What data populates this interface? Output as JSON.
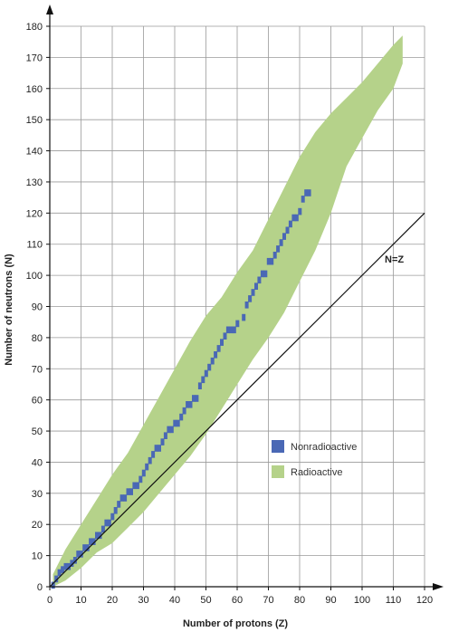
{
  "chart_data": {
    "type": "area",
    "title": "",
    "xlabel": "Number of protons (Z)",
    "ylabel": "Number of neutrons (N)",
    "xlim": [
      0,
      120
    ],
    "ylim": [
      0,
      180
    ],
    "x_ticks": [
      "0",
      "10",
      "20",
      "30",
      "40",
      "50",
      "60",
      "70",
      "80",
      "90",
      "100",
      "110",
      "120"
    ],
    "y_ticks": [
      "0",
      "10",
      "20",
      "30",
      "40",
      "50",
      "60",
      "70",
      "80",
      "90",
      "100",
      "110",
      "120",
      "130",
      "140",
      "150",
      "160",
      "170",
      "180"
    ],
    "grid": true,
    "legend_position": "center-right",
    "series": [
      {
        "name": "Radioactive",
        "color": "#b5d28a",
        "kind": "band",
        "points": [
          {
            "z": 1,
            "n_min": 0,
            "n_max": 4
          },
          {
            "z": 5,
            "n_min": 2,
            "n_max": 12
          },
          {
            "z": 10,
            "n_min": 6,
            "n_max": 20
          },
          {
            "z": 15,
            "n_min": 11,
            "n_max": 28
          },
          {
            "z": 20,
            "n_min": 14,
            "n_max": 36
          },
          {
            "z": 25,
            "n_min": 19,
            "n_max": 43
          },
          {
            "z": 30,
            "n_min": 24,
            "n_max": 52
          },
          {
            "z": 35,
            "n_min": 30,
            "n_max": 61
          },
          {
            "z": 40,
            "n_min": 36,
            "n_max": 70
          },
          {
            "z": 45,
            "n_min": 42,
            "n_max": 79
          },
          {
            "z": 50,
            "n_min": 49,
            "n_max": 87
          },
          {
            "z": 55,
            "n_min": 57,
            "n_max": 93
          },
          {
            "z": 60,
            "n_min": 65,
            "n_max": 101
          },
          {
            "z": 65,
            "n_min": 73,
            "n_max": 108
          },
          {
            "z": 70,
            "n_min": 80,
            "n_max": 118
          },
          {
            "z": 75,
            "n_min": 88,
            "n_max": 128
          },
          {
            "z": 80,
            "n_min": 98,
            "n_max": 138
          },
          {
            "z": 85,
            "n_min": 108,
            "n_max": 146
          },
          {
            "z": 90,
            "n_min": 120,
            "n_max": 152
          },
          {
            "z": 95,
            "n_min": 135,
            "n_max": 157
          },
          {
            "z": 100,
            "n_min": 144,
            "n_max": 162
          },
          {
            "z": 105,
            "n_min": 153,
            "n_max": 168
          },
          {
            "z": 110,
            "n_min": 160,
            "n_max": 174
          },
          {
            "z": 113,
            "n_min": 168,
            "n_max": 177
          }
        ]
      },
      {
        "name": "Nonradioactive",
        "color": "#4a68b5",
        "kind": "points",
        "points": [
          [
            1,
            0
          ],
          [
            2,
            2
          ],
          [
            3,
            4
          ],
          [
            4,
            5
          ],
          [
            5,
            6
          ],
          [
            6,
            6
          ],
          [
            7,
            7
          ],
          [
            8,
            8
          ],
          [
            9,
            10
          ],
          [
            10,
            10
          ],
          [
            11,
            12
          ],
          [
            12,
            12
          ],
          [
            13,
            14
          ],
          [
            14,
            14
          ],
          [
            15,
            16
          ],
          [
            16,
            16
          ],
          [
            17,
            18
          ],
          [
            18,
            20
          ],
          [
            19,
            20
          ],
          [
            20,
            22
          ],
          [
            21,
            24
          ],
          [
            22,
            26
          ],
          [
            23,
            28
          ],
          [
            24,
            28
          ],
          [
            25,
            30
          ],
          [
            26,
            30
          ],
          [
            27,
            32
          ],
          [
            28,
            32
          ],
          [
            29,
            34
          ],
          [
            30,
            36
          ],
          [
            31,
            38
          ],
          [
            32,
            40
          ],
          [
            33,
            42
          ],
          [
            34,
            44
          ],
          [
            35,
            44
          ],
          [
            36,
            46
          ],
          [
            37,
            48
          ],
          [
            38,
            50
          ],
          [
            39,
            50
          ],
          [
            40,
            52
          ],
          [
            41,
            52
          ],
          [
            42,
            54
          ],
          [
            43,
            56
          ],
          [
            44,
            58
          ],
          [
            45,
            58
          ],
          [
            46,
            60
          ],
          [
            47,
            60
          ],
          [
            48,
            64
          ],
          [
            49,
            66
          ],
          [
            50,
            68
          ],
          [
            51,
            70
          ],
          [
            52,
            72
          ],
          [
            53,
            74
          ],
          [
            54,
            76
          ],
          [
            55,
            78
          ],
          [
            56,
            80
          ],
          [
            57,
            82
          ],
          [
            58,
            82
          ],
          [
            59,
            82
          ],
          [
            60,
            84
          ],
          [
            62,
            86
          ],
          [
            63,
            90
          ],
          [
            64,
            92
          ],
          [
            65,
            94
          ],
          [
            66,
            96
          ],
          [
            67,
            98
          ],
          [
            68,
            100
          ],
          [
            69,
            100
          ],
          [
            70,
            104
          ],
          [
            71,
            104
          ],
          [
            72,
            106
          ],
          [
            73,
            108
          ],
          [
            74,
            110
          ],
          [
            75,
            112
          ],
          [
            76,
            114
          ],
          [
            77,
            116
          ],
          [
            78,
            118
          ],
          [
            79,
            118
          ],
          [
            80,
            120
          ],
          [
            81,
            124
          ],
          [
            82,
            126
          ],
          [
            83,
            126
          ]
        ]
      }
    ],
    "reference_line": {
      "label": "N=Z",
      "x": [
        0,
        120
      ],
      "y": [
        0,
        120
      ],
      "color": "#111111"
    },
    "legend": [
      {
        "label": "Nonradioactive",
        "color": "#4a68b5"
      },
      {
        "label": "Radioactive",
        "color": "#b5d28a"
      }
    ]
  }
}
